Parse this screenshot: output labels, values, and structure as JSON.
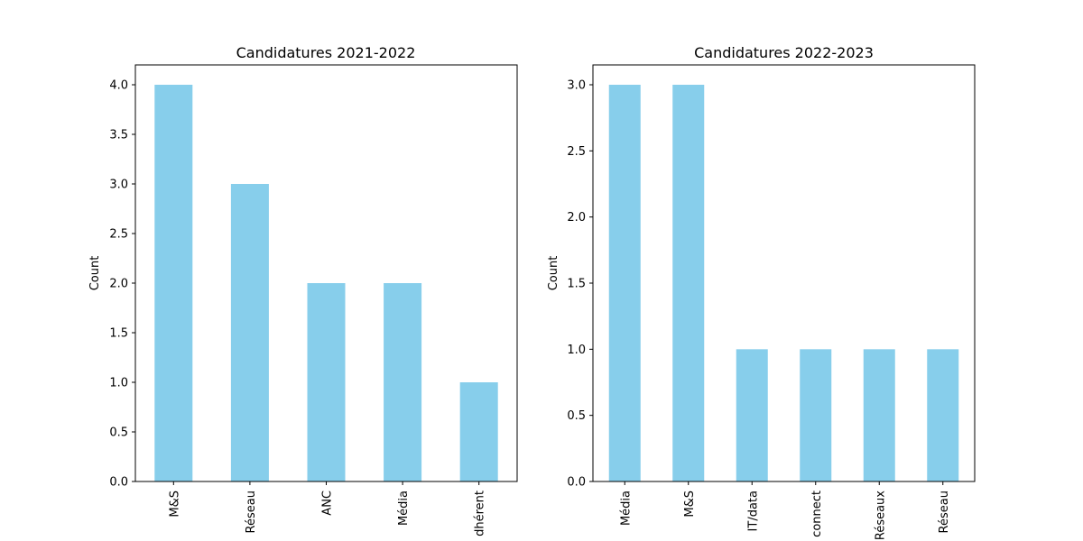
{
  "chart_data": [
    {
      "type": "bar",
      "title": "Candidatures 2021-2022",
      "xlabel": "",
      "ylabel": "Count",
      "ylim": [
        0,
        4.2
      ],
      "yticks": [
        "0.0",
        "0.5",
        "1.0",
        "1.5",
        "2.0",
        "2.5",
        "3.0",
        "3.5",
        "4.0"
      ],
      "categories": [
        "M&S",
        "Réseau",
        "ANC",
        "Média",
        "dhérent"
      ],
      "values": [
        4,
        3,
        2,
        2,
        1
      ],
      "color": "#87ceeb"
    },
    {
      "type": "bar",
      "title": "Candidatures 2022-2023",
      "xlabel": "",
      "ylabel": "Count",
      "ylim": [
        0,
        3.15
      ],
      "yticks": [
        "0.0",
        "0.5",
        "1.0",
        "1.5",
        "2.0",
        "2.5",
        "3.0"
      ],
      "categories": [
        "Média",
        "M&S",
        "IT/data",
        "connect",
        "Réseaux",
        "Réseau"
      ],
      "values": [
        3,
        3,
        1,
        1,
        1,
        1
      ],
      "color": "#87ceeb"
    }
  ]
}
